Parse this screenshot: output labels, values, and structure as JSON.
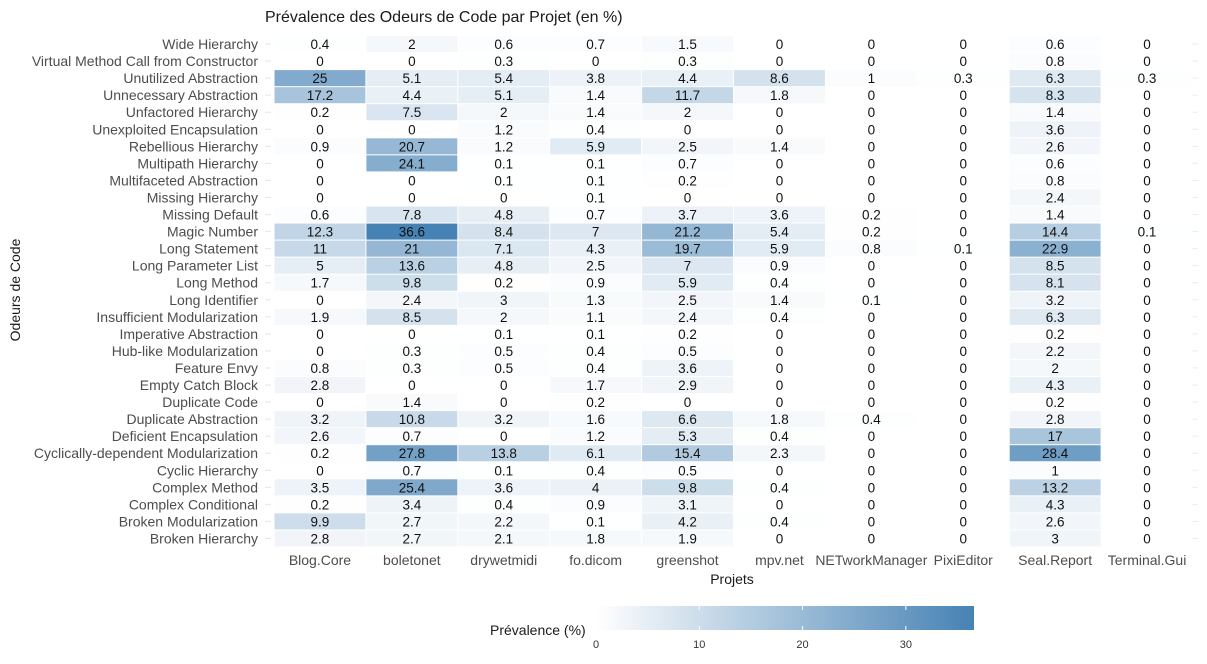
{
  "chart_data": {
    "type": "heatmap",
    "title": "Prévalence des Odeurs de Code par Projet (en %)",
    "xlabel": "Projets",
    "ylabel": "Odeurs de Code",
    "x_categories": [
      "Blog.Core",
      "boletonet",
      "drywetmidi",
      "fo.dicom",
      "greenshot",
      "mpv.net",
      "NETworkManager",
      "PixiEditor",
      "Seal.Report",
      "Terminal.Gui"
    ],
    "y_categories": [
      "Wide Hierarchy",
      "Virtual Method Call from Constructor",
      "Unutilized Abstraction",
      "Unnecessary Abstraction",
      "Unfactored Hierarchy",
      "Unexploited Encapsulation",
      "Rebellious Hierarchy",
      "Multipath Hierarchy",
      "Multifaceted Abstraction",
      "Missing Hierarchy",
      "Missing Default",
      "Magic Number",
      "Long Statement",
      "Long Parameter List",
      "Long Method",
      "Long Identifier",
      "Insufficient Modularization",
      "Imperative Abstraction",
      "Hub-like Modularization",
      "Feature Envy",
      "Empty Catch Block",
      "Duplicate Code",
      "Duplicate Abstraction",
      "Deficient Encapsulation",
      "Cyclically-dependent Modularization",
      "Cyclic Hierarchy",
      "Complex Method",
      "Complex Conditional",
      "Broken Modularization",
      "Broken Hierarchy"
    ],
    "values": [
      [
        0.4,
        2,
        0.6,
        0.7,
        1.5,
        0,
        0,
        0,
        0.6,
        0
      ],
      [
        0,
        0,
        0.3,
        0,
        0.3,
        0,
        0,
        0,
        0.8,
        0
      ],
      [
        25,
        5.1,
        5.4,
        3.8,
        4.4,
        8.6,
        1,
        0.3,
        6.3,
        0.3
      ],
      [
        17.2,
        4.4,
        5.1,
        1.4,
        11.7,
        1.8,
        0,
        0,
        8.3,
        0
      ],
      [
        0.2,
        7.5,
        2,
        1.4,
        2,
        0,
        0,
        0,
        1.4,
        0
      ],
      [
        0,
        0,
        1.2,
        0.4,
        0,
        0,
        0,
        0,
        3.6,
        0
      ],
      [
        0.9,
        20.7,
        1.2,
        5.9,
        2.5,
        1.4,
        0,
        0,
        2.6,
        0
      ],
      [
        0,
        24.1,
        0.1,
        0.1,
        0.7,
        0,
        0,
        0,
        0.6,
        0
      ],
      [
        0,
        0,
        0.1,
        0.1,
        0.2,
        0,
        0,
        0,
        0.8,
        0
      ],
      [
        0,
        0,
        0,
        0.1,
        0,
        0,
        0,
        0,
        2.4,
        0
      ],
      [
        0.6,
        7.8,
        4.8,
        0.7,
        3.7,
        3.6,
        0.2,
        0,
        1.4,
        0
      ],
      [
        12.3,
        36.6,
        8.4,
        7,
        21.2,
        5.4,
        0.2,
        0,
        14.4,
        0.1
      ],
      [
        11,
        21,
        7.1,
        4.3,
        19.7,
        5.9,
        0.8,
        0.1,
        22.9,
        0
      ],
      [
        5,
        13.6,
        4.8,
        2.5,
        7,
        0.9,
        0,
        0,
        8.5,
        0
      ],
      [
        1.7,
        9.8,
        0.2,
        0.9,
        5.9,
        0.4,
        0,
        0,
        8.1,
        0
      ],
      [
        0,
        2.4,
        3,
        1.3,
        2.5,
        1.4,
        0.1,
        0,
        3.2,
        0
      ],
      [
        1.9,
        8.5,
        2,
        1.1,
        2.4,
        0.4,
        0,
        0,
        6.3,
        0
      ],
      [
        0,
        0,
        0.1,
        0.1,
        0.2,
        0,
        0,
        0,
        0.2,
        0
      ],
      [
        0,
        0.3,
        0.5,
        0.4,
        0.5,
        0,
        0,
        0,
        2.2,
        0
      ],
      [
        0.8,
        0.3,
        0.5,
        0.4,
        3.6,
        0,
        0,
        0,
        2,
        0
      ],
      [
        2.8,
        0,
        0,
        1.7,
        2.9,
        0,
        0,
        0,
        4.3,
        0
      ],
      [
        0,
        1.4,
        0,
        0.2,
        0,
        0,
        0,
        0,
        0.2,
        0
      ],
      [
        3.2,
        10.8,
        3.2,
        1.6,
        6.6,
        1.8,
        0.4,
        0,
        2.8,
        0
      ],
      [
        2.6,
        0.7,
        0,
        1.2,
        5.3,
        0.4,
        0,
        0,
        17,
        0
      ],
      [
        0.2,
        27.8,
        13.8,
        6.1,
        15.4,
        2.3,
        0,
        0,
        28.4,
        0
      ],
      [
        0,
        0.7,
        0.1,
        0.4,
        0.5,
        0,
        0,
        0,
        1,
        0
      ],
      [
        3.5,
        25.4,
        3.6,
        4,
        9.8,
        0.4,
        0,
        0,
        13.2,
        0
      ],
      [
        0.2,
        3.4,
        0.4,
        0.9,
        3.1,
        0,
        0,
        0,
        4.3,
        0
      ],
      [
        9.9,
        2.7,
        2.2,
        0.1,
        4.2,
        0.4,
        0,
        0,
        2.6,
        0
      ],
      [
        2.8,
        2.7,
        2.1,
        1.8,
        1.9,
        0,
        0,
        0,
        3,
        0
      ]
    ],
    "color_scale": {
      "low": "#ffffff",
      "high": "#4682b4",
      "domain": [
        0,
        36.6
      ]
    },
    "legend": {
      "title": "Prévalence (%)",
      "position": "bottom",
      "ticks": [
        0,
        10,
        20,
        30
      ]
    },
    "grid": false
  }
}
